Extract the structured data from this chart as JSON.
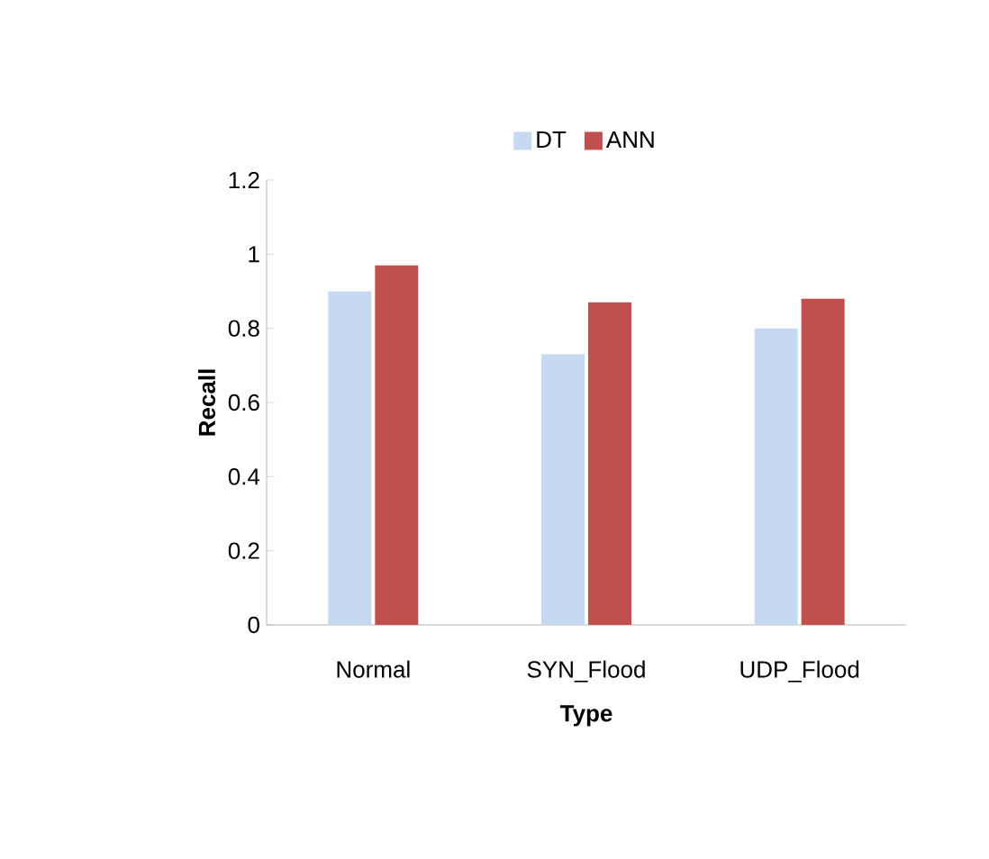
{
  "chart_data": {
    "type": "bar",
    "xlabel": "Type",
    "ylabel": "Recall",
    "categories": [
      "Normal",
      "SYN_Flood",
      "UDP_Flood"
    ],
    "series": [
      {
        "name": "DT",
        "color": "#c6d9f1",
        "values": [
          0.9,
          0.73,
          0.8
        ]
      },
      {
        "name": "ANN",
        "color": "#c0504d",
        "values": [
          0.97,
          0.87,
          0.88
        ]
      }
    ],
    "ylim": [
      0,
      1.2
    ],
    "yticks": [
      0,
      0.2,
      0.4,
      0.6,
      0.8,
      1,
      1.2
    ],
    "legend": "top",
    "grid": false
  }
}
